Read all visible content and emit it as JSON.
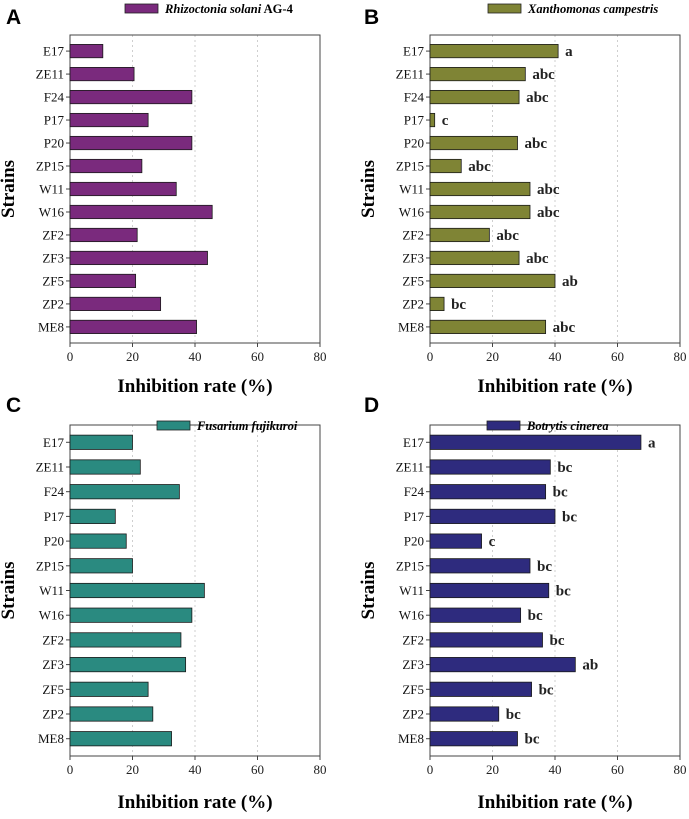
{
  "chart_data": [
    {
      "panel": "A",
      "type": "bar",
      "orientation": "horizontal",
      "legend": {
        "italic": "Rhizoctonia  solani",
        "plain": " AG-4"
      },
      "color": "#7a2a7d",
      "categories": [
        "E17",
        "ZE11",
        "F24",
        "P17",
        "P20",
        "ZP15",
        "W11",
        "W16",
        "ZF2",
        "ZF3",
        "ZF5",
        "ZP2",
        "ME8"
      ],
      "values": [
        10.5,
        20.5,
        39,
        25,
        39,
        23,
        34,
        45.5,
        21.5,
        44,
        21,
        29,
        40.5
      ],
      "significance": [],
      "xlim": [
        0,
        80
      ],
      "xticks": [
        "0",
        "20",
        "40",
        "60",
        "80"
      ],
      "xlabel": "Inhibition rate (%)",
      "ylabel": "Strains"
    },
    {
      "panel": "B",
      "type": "bar",
      "orientation": "horizontal",
      "legend": {
        "italic": "Xanthomonas  campestris",
        "plain": ""
      },
      "color": "#7f8435",
      "categories": [
        "E17",
        "ZE11",
        "F24",
        "P17",
        "P20",
        "ZP15",
        "W11",
        "W16",
        "ZF2",
        "ZF3",
        "ZF5",
        "ZP2",
        "ME8"
      ],
      "values": [
        41,
        30.5,
        28.5,
        1.5,
        28,
        10,
        32,
        32,
        19,
        28.5,
        40,
        4.5,
        37
      ],
      "significance": [
        "a",
        "abc",
        "abc",
        "c",
        "abc",
        "abc",
        "abc",
        "abc",
        "abc",
        "abc",
        "ab",
        "bc",
        "abc"
      ],
      "xlim": [
        0,
        80
      ],
      "xticks": [
        "0",
        "20",
        "40",
        "60",
        "80"
      ],
      "xlabel": "Inhibition rate (%)",
      "ylabel": "Strains"
    },
    {
      "panel": "C",
      "type": "bar",
      "orientation": "horizontal",
      "legend": {
        "italic": "Fusarium  fujikuroi",
        "plain": ""
      },
      "color": "#2a8a80",
      "categories": [
        "E17",
        "ZE11",
        "F24",
        "P17",
        "P20",
        "ZP15",
        "W11",
        "W16",
        "ZF2",
        "ZF3",
        "ZF5",
        "ZP2",
        "ME8"
      ],
      "values": [
        20,
        22.5,
        35,
        14.5,
        18,
        20,
        43,
        39,
        35.5,
        37,
        25,
        26.5,
        32.5
      ],
      "significance": [],
      "xlim": [
        0,
        80
      ],
      "xticks": [
        "0",
        "20",
        "40",
        "60",
        "80"
      ],
      "xlabel": "Inhibition rate (%)",
      "ylabel": "Strains"
    },
    {
      "panel": "D",
      "type": "bar",
      "orientation": "horizontal",
      "legend": {
        "italic": "Botrytis  cinerea",
        "plain": ""
      },
      "color": "#2e2b7e",
      "categories": [
        "E17",
        "ZE11",
        "F24",
        "P17",
        "P20",
        "ZP15",
        "W11",
        "W16",
        "ZF2",
        "ZF3",
        "ZF5",
        "ZP2",
        "ME8"
      ],
      "values": [
        67.5,
        38.5,
        37,
        40,
        16.5,
        32,
        38,
        29,
        36,
        46.5,
        32.5,
        22,
        28
      ],
      "significance": [
        "a",
        "bc",
        "bc",
        "bc",
        "c",
        "bc",
        "bc",
        "bc",
        "bc",
        "ab",
        "bc",
        "bc",
        "bc"
      ],
      "xlim": [
        0,
        80
      ],
      "xticks": [
        "0",
        "20",
        "40",
        "60",
        "80"
      ],
      "xlabel": "Inhibition rate (%)",
      "ylabel": "Strains"
    }
  ]
}
